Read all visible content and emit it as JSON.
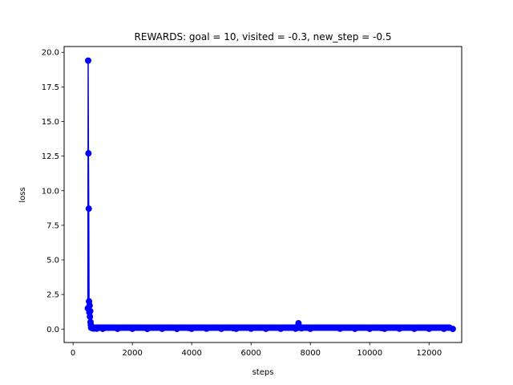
{
  "chart_data": {
    "type": "line",
    "title": "REWARDS: goal = 10, visited = -0.3, new_step = -0.5",
    "xlabel": "steps",
    "ylabel": "loss",
    "xlim": [
      -300,
      13100
    ],
    "ylim": [
      -0.97,
      20.42
    ],
    "xticks": [
      0,
      2000,
      4000,
      6000,
      8000,
      10000,
      12000
    ],
    "yticks": [
      0.0,
      2.5,
      5.0,
      7.5,
      10.0,
      12.5,
      15.0,
      17.5,
      20.0
    ],
    "xtick_labels": [
      "0",
      "2000",
      "4000",
      "6000",
      "8000",
      "10000",
      "12000"
    ],
    "ytick_labels": [
      "0.0",
      "2.5",
      "5.0",
      "7.5",
      "10.0",
      "12.5",
      "15.0",
      "17.5",
      "20.0"
    ],
    "grid": false,
    "legend": "none",
    "series": [
      {
        "color": "#0000ff",
        "marker": "circle",
        "x": [
          500,
          510,
          520,
          530,
          540,
          550,
          560,
          570,
          580,
          590,
          600,
          620,
          640,
          660,
          700,
          800,
          1000,
          1500,
          2000,
          2500,
          3000,
          3500,
          3900,
          4000,
          4500,
          5000,
          5400,
          5500,
          6000,
          6500,
          7000,
          7500,
          7600,
          7700,
          8000,
          8500,
          9000,
          9500,
          10000,
          10400,
          10500,
          11000,
          11100,
          11500,
          12000,
          12500,
          12800
        ],
        "y": [
          1.5,
          19.4,
          12.7,
          8.7,
          2.0,
          1.2,
          1.7,
          0.9,
          1.3,
          0.5,
          0.3,
          0.2,
          0.1,
          0.05,
          0.04,
          0.03,
          0.02,
          0.02,
          0.02,
          0.01,
          0.02,
          0.01,
          0.08,
          0.02,
          0.03,
          0.02,
          0.06,
          0.02,
          0.03,
          0.02,
          0.02,
          0.03,
          0.42,
          0.05,
          0.02,
          0.1,
          0.03,
          0.02,
          0.02,
          0.07,
          0.02,
          0.03,
          0.1,
          0.02,
          0.02,
          0.02,
          0.01
        ]
      }
    ]
  }
}
